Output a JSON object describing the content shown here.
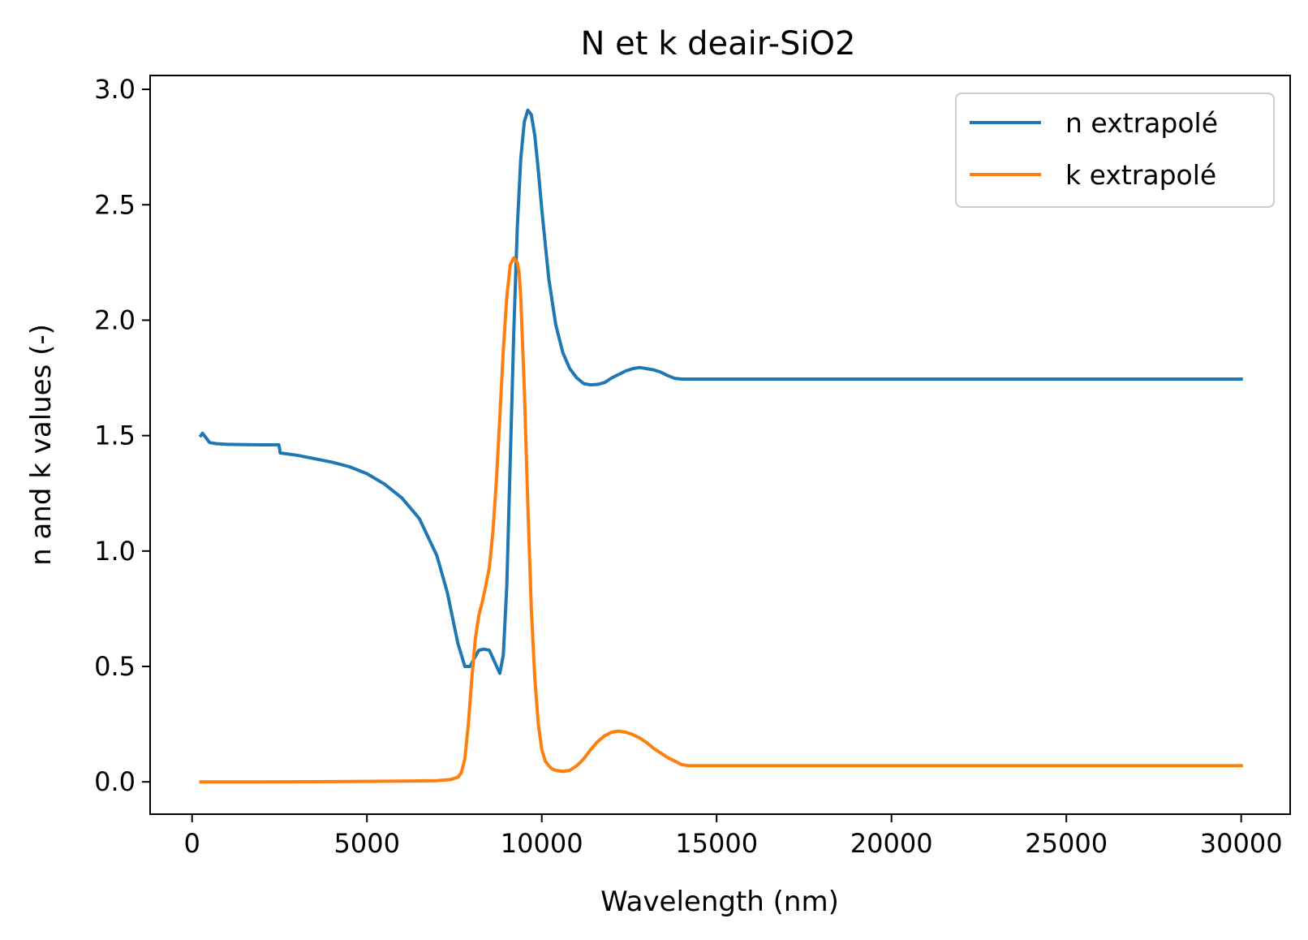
{
  "chart_data": {
    "type": "line",
    "title": "N et k deair-SiO2",
    "xlabel": "Wavelength (nm)",
    "ylabel": "n and k values (-)",
    "xlim": [
      -1200,
      31400
    ],
    "ylim": [
      -0.14,
      3.06
    ],
    "xticks": [
      0,
      5000,
      10000,
      15000,
      20000,
      25000,
      30000
    ],
    "xtick_labels": [
      "0",
      "5000",
      "10000",
      "15000",
      "20000",
      "25000",
      "30000"
    ],
    "yticks": [
      0.0,
      0.5,
      1.0,
      1.5,
      2.0,
      2.5,
      3.0
    ],
    "ytick_labels": [
      "0.0",
      "0.5",
      "1.0",
      "1.5",
      "2.0",
      "2.5",
      "3.0"
    ],
    "grid": false,
    "legend_position": "top-right",
    "series": [
      {
        "name": "n extrapolé",
        "color": "#1f77b4",
        "x": [
          250,
          300,
          400,
          500,
          700,
          1000,
          1500,
          2000,
          2480,
          2500,
          2520,
          2600,
          3000,
          3500,
          4000,
          4500,
          5000,
          5500,
          6000,
          6500,
          7000,
          7300,
          7600,
          7800,
          7950,
          8050,
          8200,
          8350,
          8500,
          8650,
          8800,
          8900,
          9000,
          9100,
          9200,
          9300,
          9400,
          9500,
          9600,
          9700,
          9800,
          9900,
          10000,
          10200,
          10400,
          10600,
          10800,
          11000,
          11200,
          11400,
          11600,
          11800,
          12000,
          12200,
          12400,
          12600,
          12800,
          13000,
          13200,
          13400,
          13600,
          13800,
          14000,
          14200,
          14300,
          15000,
          20000,
          25000,
          30000
        ],
        "y": [
          1.5,
          1.51,
          1.49,
          1.47,
          1.465,
          1.462,
          1.461,
          1.46,
          1.46,
          1.445,
          1.425,
          1.423,
          1.415,
          1.4,
          1.385,
          1.365,
          1.335,
          1.29,
          1.23,
          1.14,
          0.98,
          0.82,
          0.6,
          0.5,
          0.5,
          0.53,
          0.57,
          0.575,
          0.57,
          0.52,
          0.47,
          0.55,
          0.85,
          1.4,
          1.95,
          2.4,
          2.7,
          2.86,
          2.91,
          2.89,
          2.8,
          2.65,
          2.48,
          2.18,
          1.98,
          1.86,
          1.79,
          1.75,
          1.725,
          1.72,
          1.722,
          1.73,
          1.75,
          1.765,
          1.78,
          1.79,
          1.795,
          1.79,
          1.785,
          1.775,
          1.76,
          1.748,
          1.745,
          1.745,
          1.745,
          1.745,
          1.745,
          1.745,
          1.745
        ]
      },
      {
        "name": "k extrapolé",
        "color": "#ff7f0e",
        "x": [
          250,
          2000,
          4000,
          6000,
          7000,
          7400,
          7600,
          7700,
          7800,
          7900,
          8000,
          8100,
          8200,
          8300,
          8400,
          8500,
          8600,
          8700,
          8800,
          8900,
          9000,
          9100,
          9200,
          9300,
          9350,
          9400,
          9500,
          9600,
          9700,
          9800,
          9900,
          10000,
          10100,
          10200,
          10300,
          10400,
          10600,
          10800,
          11000,
          11200,
          11400,
          11600,
          11800,
          12000,
          12200,
          12400,
          12600,
          12800,
          13000,
          13200,
          13400,
          13600,
          13800,
          14000,
          14200,
          14300,
          15000,
          20000,
          25000,
          30000
        ],
        "y": [
          0.0,
          0.0,
          0.001,
          0.003,
          0.005,
          0.01,
          0.02,
          0.04,
          0.1,
          0.25,
          0.45,
          0.62,
          0.72,
          0.78,
          0.85,
          0.93,
          1.08,
          1.3,
          1.58,
          1.87,
          2.1,
          2.24,
          2.27,
          2.25,
          2.21,
          2.1,
          1.7,
          1.2,
          0.75,
          0.45,
          0.25,
          0.14,
          0.09,
          0.07,
          0.055,
          0.05,
          0.045,
          0.05,
          0.07,
          0.1,
          0.14,
          0.175,
          0.2,
          0.215,
          0.22,
          0.215,
          0.205,
          0.19,
          0.17,
          0.145,
          0.125,
          0.105,
          0.09,
          0.075,
          0.07,
          0.07,
          0.07,
          0.07,
          0.07,
          0.07
        ]
      }
    ]
  }
}
